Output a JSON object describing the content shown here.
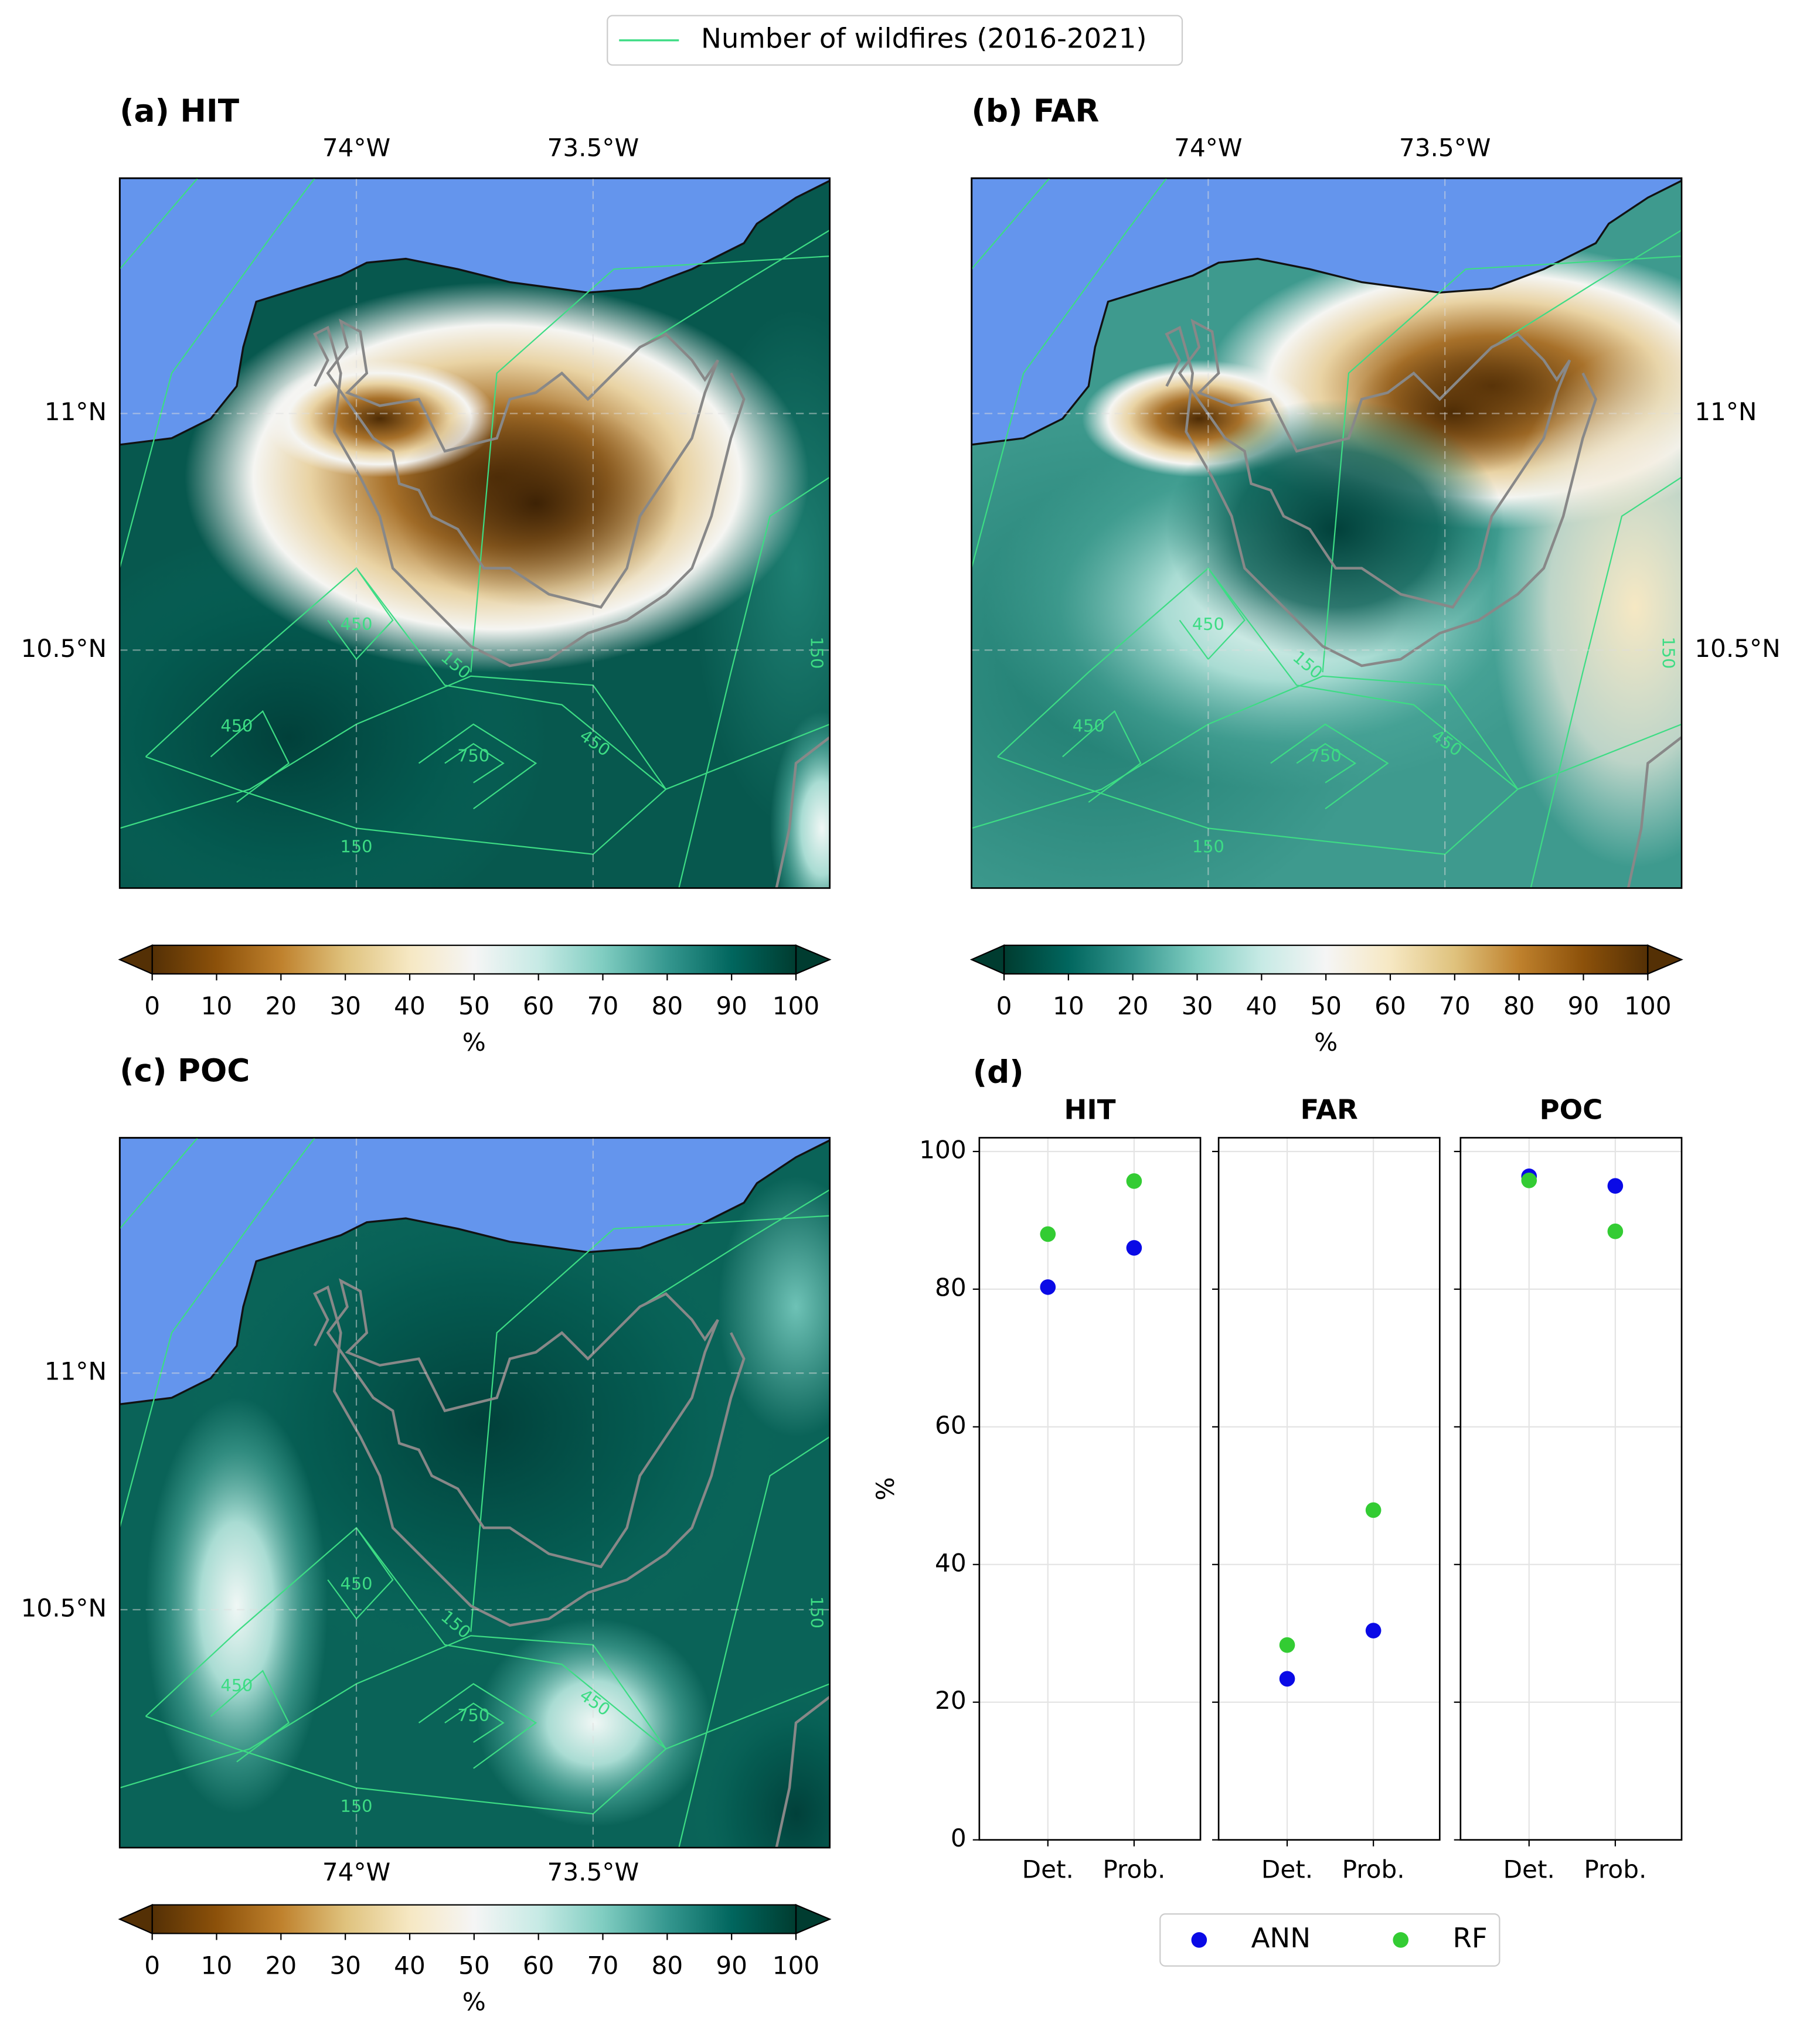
{
  "legend": {
    "label": "Number of wildfires (2016-2021)",
    "color": "#3ddc84"
  },
  "maps": [
    {
      "title": "(a) HIT",
      "lon_labels": [
        "74°W",
        "73.5°W"
      ],
      "lat_labels": [
        "11°N",
        "10.5°N"
      ],
      "contour_labels": [
        "450",
        "450",
        "750",
        "450",
        "150",
        "150",
        "150"
      ],
      "colorbar": {
        "ticks": [
          0,
          10,
          20,
          30,
          40,
          50,
          60,
          70,
          80,
          90,
          100
        ],
        "label": "%",
        "reverse": false
      }
    },
    {
      "title": "(b) FAR",
      "lon_labels": [
        "74°W",
        "73.5°W"
      ],
      "lat_labels": [
        "11°N",
        "10.5°N"
      ],
      "contour_labels": [
        "450",
        "450",
        "750",
        "450",
        "150",
        "150",
        "150"
      ],
      "colorbar": {
        "ticks": [
          0,
          10,
          20,
          30,
          40,
          50,
          60,
          70,
          80,
          90,
          100
        ],
        "label": "%",
        "reverse": true
      }
    },
    {
      "title": "(c) POC",
      "lon_labels": [
        "74°W",
        "73.5°W"
      ],
      "lat_labels": [
        "11°N",
        "10.5°N"
      ],
      "contour_labels": [
        "450",
        "450",
        "750",
        "450",
        "150",
        "150",
        "150"
      ],
      "colorbar": {
        "ticks": [
          0,
          10,
          20,
          30,
          40,
          50,
          60,
          70,
          80,
          90,
          100
        ],
        "label": "%",
        "reverse": false
      }
    }
  ],
  "chart_data": {
    "type": "scatter",
    "title": "(d)",
    "ylabel": "%",
    "panels": [
      "HIT",
      "FAR",
      "POC"
    ],
    "categories": [
      "Det.",
      "Prob."
    ],
    "ylim": [
      0,
      102
    ],
    "yticks": [
      0,
      20,
      40,
      60,
      80,
      100
    ],
    "grid": true,
    "legend": "lower center",
    "series": [
      {
        "name": "ANN",
        "color": "#0a0ae6",
        "values": [
          [
            80.3,
            86
          ],
          [
            23.4,
            30.4
          ],
          [
            96.4,
            95
          ]
        ]
      },
      {
        "name": "RF",
        "color": "#33cc33",
        "values": [
          [
            88,
            95.7
          ],
          [
            28.3,
            47.9
          ],
          [
            95.8,
            88.4
          ]
        ]
      }
    ]
  }
}
